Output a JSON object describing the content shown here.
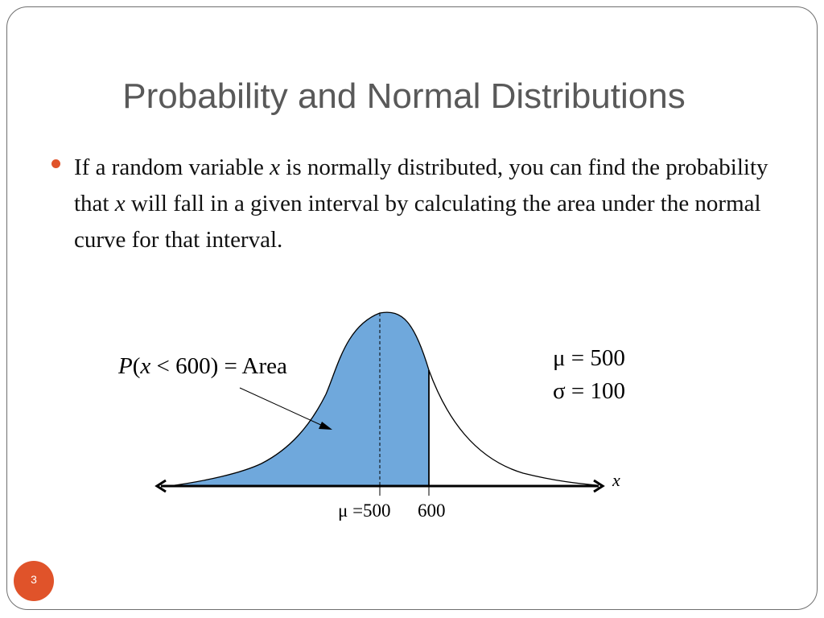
{
  "slide": {
    "title": "Probability and Normal Distributions",
    "bullet": {
      "part1": "If a random variable ",
      "var1": "x",
      "part2": " is normally distributed, you can find the probability that ",
      "var2": "x",
      "part3": " will fall in a given interval by calculating the area under the normal curve for that interval."
    },
    "page_number": "3"
  },
  "diagram": {
    "area_label": {
      "p": "P",
      "open": "(",
      "x": "x",
      "rest": " < 600) = Area"
    },
    "mu_param": "μ = 500",
    "sigma_param": "σ = 100",
    "axis_label": "x",
    "tick_mean": "μ =500",
    "tick_bound": "600",
    "distribution": {
      "mean": 500,
      "sd": 100,
      "shade_below": 600
    }
  },
  "colors": {
    "bullet": "#e0532a",
    "badge": "#e0532a",
    "shade": "#6fa8dc"
  }
}
